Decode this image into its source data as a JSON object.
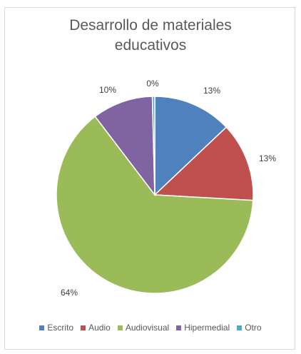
{
  "chart_data": {
    "type": "pie",
    "title_lines": [
      "Desarrollo de materiales",
      "educativos"
    ],
    "categories": [
      "Escrito",
      "Audio",
      "Audiovisual",
      "Hipermedial",
      "Otro"
    ],
    "values": [
      13,
      13,
      64,
      10,
      0
    ],
    "data_labels": [
      "13%",
      "13%",
      "64%",
      "10%",
      "0%"
    ],
    "colors": [
      "#4f81bd",
      "#c0504d",
      "#9bbb59",
      "#8064a2",
      "#4bacc6"
    ],
    "legend_position": "bottom"
  }
}
